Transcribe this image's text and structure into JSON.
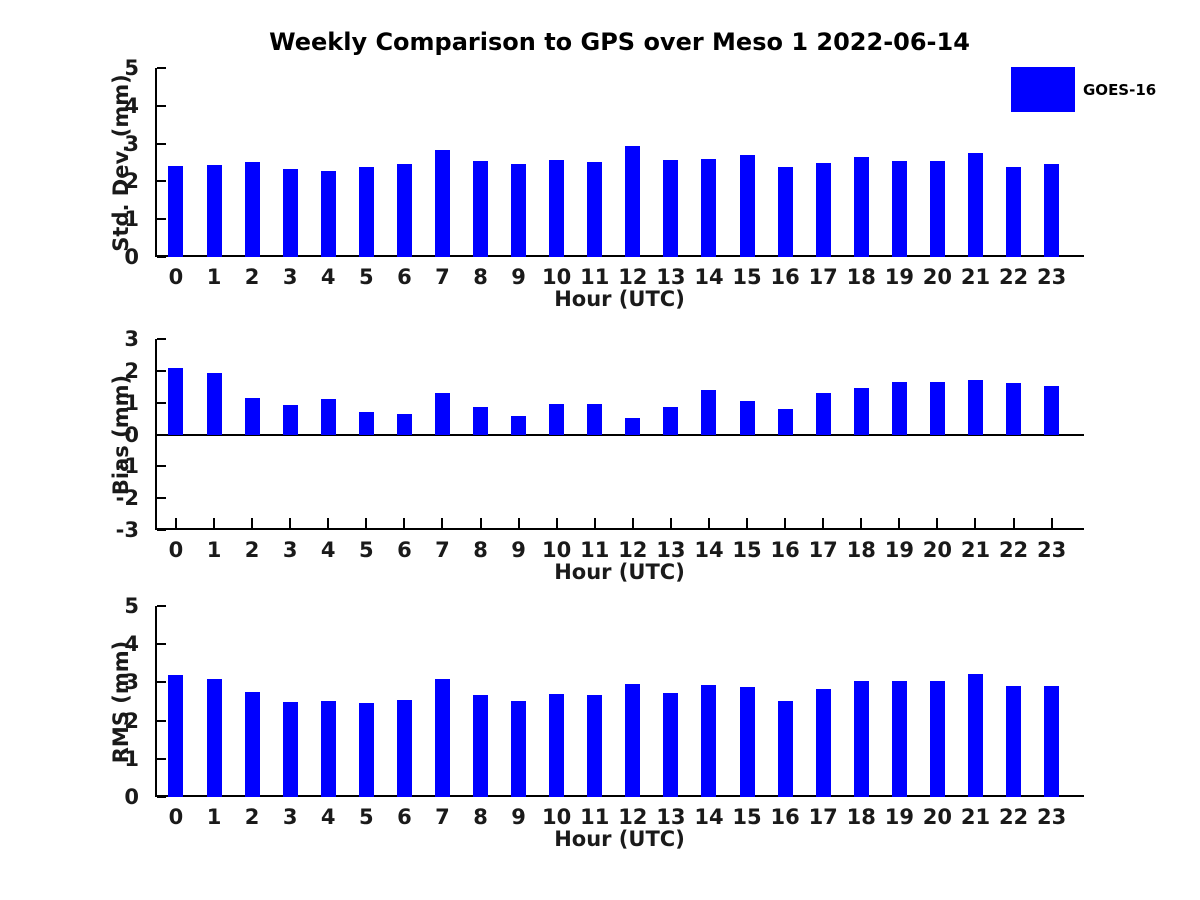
{
  "title": "Weekly Comparison to GPS over Meso 1 2022-06-14",
  "legend": {
    "label": "GOES-16",
    "position": "top-right"
  },
  "colors": {
    "bar": "#0000FF",
    "axis": "#000000",
    "text": "#1a1a1a",
    "background": "#ffffff"
  },
  "chart_data": [
    {
      "type": "bar",
      "id": "std-dev",
      "series_name": "GOES-16",
      "ylabel": "Std. Dev. (mm)",
      "xlabel": "Hour (UTC)",
      "categories": [
        0,
        1,
        2,
        3,
        4,
        5,
        6,
        7,
        8,
        9,
        10,
        11,
        12,
        13,
        14,
        15,
        16,
        17,
        18,
        19,
        20,
        21,
        22,
        23
      ],
      "values": [
        2.4,
        2.43,
        2.51,
        2.33,
        2.27,
        2.38,
        2.47,
        2.83,
        2.53,
        2.45,
        2.56,
        2.51,
        2.93,
        2.57,
        2.58,
        2.71,
        2.39,
        2.49,
        2.64,
        2.55,
        2.54,
        2.74,
        2.38,
        2.45
      ],
      "ylim": [
        0,
        5
      ],
      "yticks": [
        0,
        1,
        2,
        3,
        4,
        5
      ],
      "xlim": [
        -0.55,
        23.85
      ],
      "grid": false,
      "xtick_marks_visible": false
    },
    {
      "type": "bar",
      "id": "bias",
      "series_name": "GOES-16",
      "ylabel": "Bias (mm)",
      "xlabel": "Hour (UTC)",
      "categories": [
        0,
        1,
        2,
        3,
        4,
        5,
        6,
        7,
        8,
        9,
        10,
        11,
        12,
        13,
        14,
        15,
        16,
        17,
        18,
        19,
        20,
        21,
        22,
        23
      ],
      "values": [
        2.1,
        1.92,
        1.16,
        0.92,
        1.12,
        0.7,
        0.63,
        1.3,
        0.88,
        0.58,
        0.95,
        0.97,
        0.52,
        0.85,
        1.41,
        1.05,
        0.79,
        1.31,
        1.47,
        1.65,
        1.66,
        1.7,
        1.63,
        1.53
      ],
      "ylim": [
        -3,
        3
      ],
      "yticks": [
        3,
        2,
        1,
        0,
        -1,
        -2,
        -3
      ],
      "xlim": [
        -0.55,
        23.85
      ],
      "grid": false,
      "xtick_marks_visible": true
    },
    {
      "type": "bar",
      "id": "rms",
      "series_name": "GOES-16",
      "ylabel": "RMS (mm)",
      "xlabel": "Hour (UTC)",
      "categories": [
        0,
        1,
        2,
        3,
        4,
        5,
        6,
        7,
        8,
        9,
        10,
        11,
        12,
        13,
        14,
        15,
        16,
        17,
        18,
        19,
        20,
        21,
        22,
        23
      ],
      "values": [
        3.19,
        3.09,
        2.75,
        2.49,
        2.52,
        2.46,
        2.54,
        3.08,
        2.67,
        2.51,
        2.7,
        2.67,
        2.95,
        2.72,
        2.92,
        2.89,
        2.51,
        2.82,
        3.03,
        3.03,
        3.03,
        3.21,
        2.9,
        2.9
      ],
      "ylim": [
        0,
        5
      ],
      "yticks": [
        0,
        1,
        2,
        3,
        4,
        5
      ],
      "xlim": [
        -0.55,
        23.85
      ],
      "grid": false,
      "xtick_marks_visible": false
    }
  ]
}
